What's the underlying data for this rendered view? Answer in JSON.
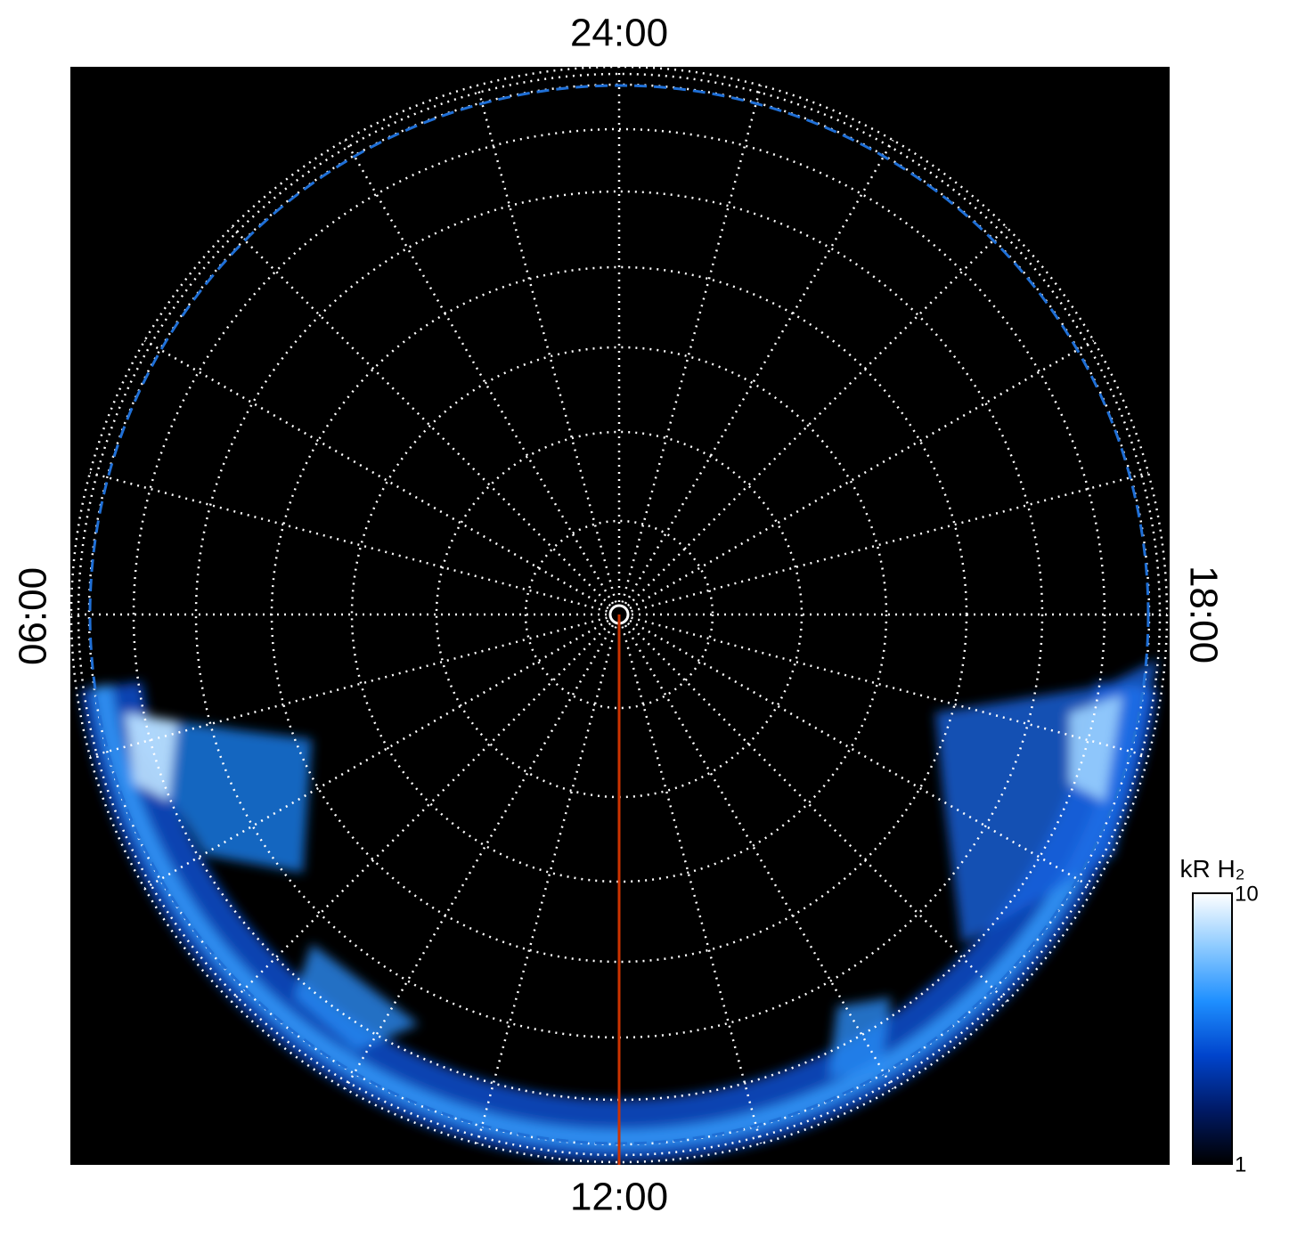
{
  "chart_data": {
    "type": "polar-map",
    "labels": {
      "top": "24:00",
      "bottom": "12:00",
      "left": "06:00",
      "right": "18:00"
    },
    "colorbar": {
      "title": "kR H₂",
      "lim": [
        1,
        10
      ],
      "ticks": [
        1,
        10
      ],
      "log": true,
      "colors": [
        "#000000",
        "#001a66",
        "#0044cc",
        "#1e8fff",
        "#8ccaff",
        "#ffffff"
      ]
    },
    "meridian_color": "#cc3300",
    "boundary_color": "#1f6fd6"
  }
}
